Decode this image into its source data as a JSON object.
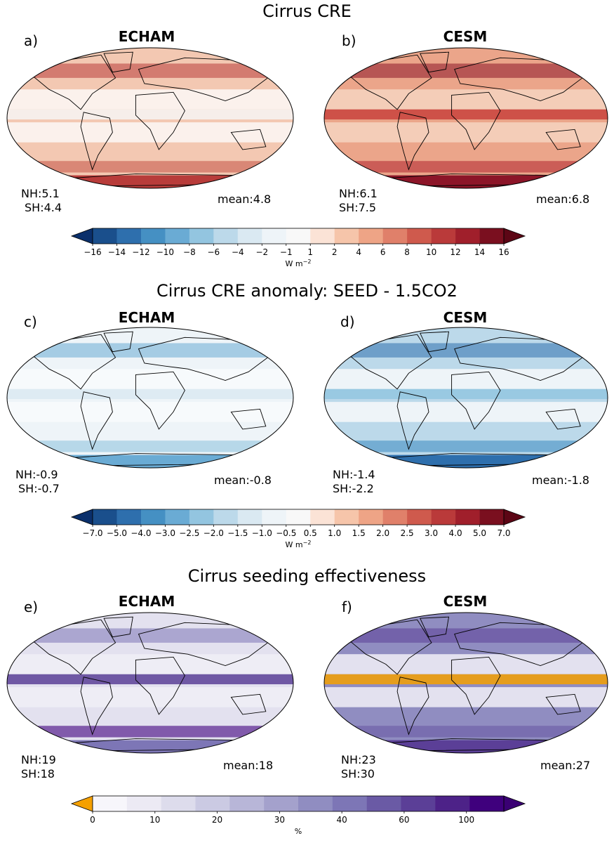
{
  "sections": [
    {
      "title": "Cirrus CRE",
      "colorbar": {
        "ticks": [
          "−16",
          "−14",
          "−12",
          "−10",
          "−8",
          "−6",
          "−4",
          "−2",
          "−1",
          "1",
          "2",
          "4",
          "6",
          "8",
          "10",
          "12",
          "14",
          "16"
        ],
        "unit": "W m",
        "unit_sup": "−2",
        "colors": [
          "#1a4f8c",
          "#2e6fad",
          "#4590c3",
          "#6aabd4",
          "#93c5e0",
          "#bcd9ea",
          "#dae9f2",
          "#eef4f8",
          "#f8f8f8",
          "#fbe3d6",
          "#f6c5aa",
          "#eea486",
          "#e0806a",
          "#cf5a4d",
          "#ba3a3a",
          "#a01f2b",
          "#7a0f1f"
        ],
        "lower_tri": "#0a2f6b",
        "upper_tri": "#5c0615"
      },
      "panels": [
        {
          "letter": "a)",
          "model": "ECHAM",
          "nh": "NH:5.1",
          "sh": "SH:4.4",
          "mean": "mean:4.8",
          "fill": "#f3c8b2",
          "band": "#fbf1ec",
          "tropic": "#f6f4f3",
          "polar": "#b83c3a",
          "accent": "#c85b4e"
        },
        {
          "letter": "b)",
          "model": "CESM",
          "nh": "NH:6.1",
          "sh": "SH:7.5",
          "mean": "mean:6.8",
          "fill": "#eba58a",
          "band": "#f4cdb8",
          "tropic": "#c9423c",
          "polar": "#8c1528",
          "accent": "#b52d35"
        }
      ]
    },
    {
      "title": "Cirrus CRE anomaly: SEED - 1.5CO2",
      "colorbar": {
        "ticks": [
          "−7.0",
          "−5.0",
          "−4.0",
          "−3.0",
          "−2.5",
          "−2.0",
          "−1.5",
          "−1.0",
          "−0.5",
          "0.5",
          "1.0",
          "1.5",
          "2.0",
          "2.5",
          "3.0",
          "4.0",
          "5.0",
          "7.0"
        ],
        "unit": "W m",
        "unit_sup": "−2",
        "colors": [
          "#1a4f8c",
          "#2e6fad",
          "#4590c3",
          "#6aabd4",
          "#93c5e0",
          "#bcd9ea",
          "#dae9f2",
          "#eef4f8",
          "#f8f8f8",
          "#fbe3d6",
          "#f6c5aa",
          "#eea486",
          "#e0806a",
          "#cf5a4d",
          "#ba3a3a",
          "#a01f2b",
          "#7a0f1f"
        ],
        "lower_tri": "#0a2f6b",
        "upper_tri": "#5c0615"
      },
      "panels": [
        {
          "letter": "c)",
          "model": "ECHAM",
          "nh": "NH:-0.9",
          "sh": "SH:-0.7",
          "mean": "mean:-0.8",
          "fill": "#eef4f8",
          "band": "#f7fafc",
          "tropic": "#dae9f2",
          "polar": "#6aabd4",
          "accent": "#93c5e0"
        },
        {
          "letter": "d)",
          "model": "CESM",
          "nh": "NH:-1.4",
          "sh": "SH:-2.2",
          "mean": "mean:-1.8",
          "fill": "#bcd9ea",
          "band": "#eef4f8",
          "tropic": "#93c5e0",
          "polar": "#2e6fad",
          "accent": "#4590c3"
        }
      ]
    },
    {
      "title": "Cirrus seeding effectiveness",
      "colorbar": {
        "ticks": [
          "0",
          "10",
          "20",
          "30",
          "40",
          "60",
          "100"
        ],
        "unit": "%",
        "unit_sup": "",
        "colors": [
          "#f7f6fb",
          "#eceaf4",
          "#dddcec",
          "#cbcae3",
          "#b8b6d8",
          "#a4a1cc",
          "#908dc1",
          "#7d76b6",
          "#6a5aa5",
          "#5b3f97",
          "#4d2288",
          "#3f007d"
        ],
        "lower_tri": "#f5a000",
        "upper_tri": "#3a0073"
      },
      "panels": [
        {
          "letter": "e)",
          "model": "ECHAM",
          "nh": "NH:19",
          "sh": "SH:18",
          "mean": "mean:18",
          "fill": "#e3e1ef",
          "band": "#eeedf5",
          "tropic": "#5b3f97",
          "polar": "#7d76b6",
          "accent": "#3f007d"
        },
        {
          "letter": "f)",
          "model": "CESM",
          "nh": "NH:23",
          "sh": "SH:30",
          "mean": "mean:27",
          "fill": "#908dc1",
          "band": "#e3e1ef",
          "tropic": "#f5a000",
          "polar": "#5b3f97",
          "accent": "#6a5aa5"
        }
      ]
    }
  ]
}
